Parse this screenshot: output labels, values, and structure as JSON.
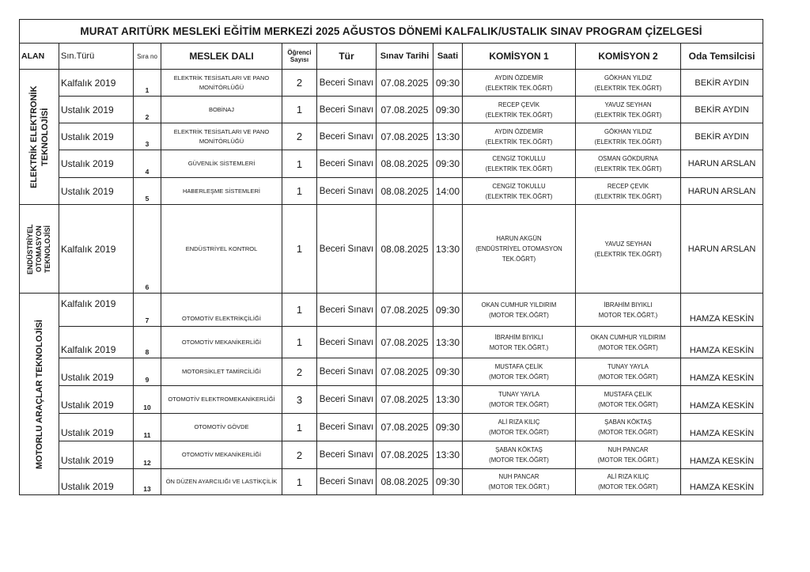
{
  "title": "MURAT ARITÜRK MESLEKİ EĞİTİM MERKEZİ 2025 AĞUSTOS DÖNEMİ KALFALIK/USTALIK SINAV PROGRAM ÇİZELGESİ",
  "headers": {
    "alan": "ALAN",
    "sin_turu": "Sın.Türü",
    "sira_no": "Sıra no",
    "meslek_dali": "MESLEK DALI",
    "ogrenci_sayisi": "Öğrenci Sayısı",
    "tur": "Tür",
    "sinav_tarihi": "Sınav Tarihi",
    "saati": "Saati",
    "komisyon1": "KOMİSYON 1",
    "komisyon2": "KOMİSYON 2",
    "oda": "Oda Temsilcisi"
  },
  "groups": [
    {
      "alan": "ELEKTRİK ELEKTRONİK TEKNOLOJİSİ",
      "rows": [
        {
          "sin": "Kalfalık 2019",
          "sira": "1",
          "meslek": "ELEKTRİK TESİSATLARI VE PANO MONİTÖRLÜĞÜ",
          "ogr": "2",
          "tur": "Beceri Sınavı",
          "tarih": "07.08.2025",
          "saat": "09:30",
          "k1a": "AYDIN ÖZDEMİR",
          "k1b": "(ELEKTRİK TEK.ÖĞRT)",
          "k2a": "GÖKHAN YILDIZ",
          "k2b": "(ELEKTRİK TEK.ÖĞRT)",
          "oda": "BEKİR AYDIN"
        },
        {
          "sin": "Ustalık 2019",
          "sira": "2",
          "meslek": "BOBİNAJ",
          "ogr": "1",
          "tur": "Beceri Sınavı",
          "tarih": "07.08.2025",
          "saat": "09:30",
          "k1a": "RECEP ÇEVİK",
          "k1b": "(ELEKTRİK TEK.ÖĞRT)",
          "k2a": "YAVUZ SEYHAN",
          "k2b": "(ELEKTRİK TEK.ÖĞRT)",
          "oda": "BEKİR AYDIN"
        },
        {
          "sin": "Ustalık 2019",
          "sira": "3",
          "meslek": "ELEKTRİK TESİSATLARI VE PANO MONİTÖRLÜĞÜ",
          "ogr": "2",
          "tur": "Beceri Sınavı",
          "tarih": "07.08.2025",
          "saat": "13:30",
          "k1a": "AYDIN ÖZDEMİR",
          "k1b": "(ELEKTRİK TEK.ÖĞRT)",
          "k2a": "GÖKHAN YILDIZ",
          "k2b": "(ELEKTRİK TEK.ÖĞRT)",
          "oda": "BEKİR AYDIN"
        },
        {
          "sin": "Ustalık 2019",
          "sira": "4",
          "meslek": "GÜVENLİK SİSTEMLERİ",
          "ogr": "1",
          "tur": "Beceri Sınavı",
          "tarih": "08.08.2025",
          "saat": "09:30",
          "k1a": "CENGİZ TOKULLU",
          "k1b": "(ELEKTRİK TEK.ÖĞRT)",
          "k2a": "OSMAN GÖKDURNA",
          "k2b": "(ELEKTRİK TEK.ÖĞRT)",
          "oda": "HARUN ARSLAN"
        },
        {
          "sin": "Ustalık 2019",
          "sira": "5",
          "meslek": "HABERLEŞME SİSTEMLERİ",
          "ogr": "1",
          "tur": "Beceri Sınavı",
          "tarih": "08.08.2025",
          "saat": "14:00",
          "k1a": "CENGİZ TOKULLU",
          "k1b": "(ELEKTRİK TEK.ÖĞRT)",
          "k2a": "RECEP ÇEVİK",
          "k2b": "(ELEKTRİK TEK.ÖĞRT)",
          "oda": "HARUN ARSLAN"
        }
      ]
    },
    {
      "alan": "ENDÜSTRİYEL OTOMASYON TEKNOLOJİSİ",
      "rows": [
        {
          "sin": "Kalfalık 2019",
          "sira": "6",
          "meslek": "ENDÜSTRİYEL KONTROL",
          "ogr": "1",
          "tur": "Beceri Sınavı",
          "tarih": "08.08.2025",
          "saat": "13:30",
          "k1a": "HARUN AKGÜN",
          "k1b": "(ENDÜSTRİYEL OTOMASYON TEK.ÖĞRT)",
          "k2a": "YAVUZ SEYHAN",
          "k2b": "(ELEKTRİK TEK.ÖĞRT)",
          "oda": "HARUN ARSLAN"
        }
      ]
    },
    {
      "alan": "MOTORLU ARAÇLAR TEKNOLOJİSİ",
      "rows": [
        {
          "sin": "Kalfalık 2019",
          "sira": "7",
          "meslek": "OTOMOTİV ELEKTRİKÇİLİĞİ",
          "ogr": "1",
          "tur": "Beceri Sınavı",
          "tarih": "07.08.2025",
          "saat": "09:30",
          "k1a": "OKAN CUMHUR YILDIRIM",
          "k1b": "(MOTOR TEK.ÖĞRT)",
          "k2a": "İBRAHİM BIYIKLI",
          "k2b": "MOTOR TEK.ÖĞRT.)",
          "oda": "HAMZA KESKİN"
        },
        {
          "sin": "Kalfalık 2019",
          "sira": "8",
          "meslek": "OTOMOTİV MEKANİKERLİĞİ",
          "ogr": "1",
          "tur": "Beceri Sınavı",
          "tarih": "07.08.2025",
          "saat": "13:30",
          "k1a": "İBRAHİM BIYIKLI",
          "k1b": "MOTOR TEK.ÖĞRT.)",
          "k2a": "OKAN CUMHUR YILDIRIM",
          "k2b": "(MOTOR TEK.ÖĞRT)",
          "oda": "HAMZA KESKİN"
        },
        {
          "sin": "Ustalık 2019",
          "sira": "9",
          "meslek": "MOTORSİKLET TAMİRCİLİĞİ",
          "ogr": "2",
          "tur": "Beceri Sınavı",
          "tarih": "07.08.2025",
          "saat": "09:30",
          "k1a": "MUSTAFA ÇELİK",
          "k1b": "(MOTOR TEK.ÖĞRT)",
          "k2a": "TUNAY YAYLA",
          "k2b": "(MOTOR TEK.ÖĞRT)",
          "oda": "HAMZA KESKİN"
        },
        {
          "sin": "Ustalık 2019",
          "sira": "10",
          "meslek": "OTOMOTİV ELEKTROMEKANİKERLİĞİ",
          "ogr": "3",
          "tur": "Beceri Sınavı",
          "tarih": "07.08.2025",
          "saat": "13:30",
          "k1a": "TUNAY YAYLA",
          "k1b": "(MOTOR TEK.ÖĞRT)",
          "k2a": "MUSTAFA ÇELİK",
          "k2b": "(MOTOR TEK.ÖĞRT)",
          "oda": "HAMZA KESKİN"
        },
        {
          "sin": "Ustalık 2019",
          "sira": "11",
          "meslek": "OTOMOTİV GÖVDE",
          "ogr": "1",
          "tur": "Beceri Sınavı",
          "tarih": "07.08.2025",
          "saat": "09:30",
          "k1a": "ALİ RIZA KILIÇ",
          "k1b": "(MOTOR TEK.ÖĞRT)",
          "k2a": "ŞABAN KÖKTAŞ",
          "k2b": "(MOTOR TEK.ÖĞRT)",
          "oda": "HAMZA KESKİN"
        },
        {
          "sin": "Ustalık 2019",
          "sira": "12",
          "meslek": "OTOMOTİV MEKANİKERLİĞİ",
          "ogr": "2",
          "tur": "Beceri Sınavı",
          "tarih": "07.08.2025",
          "saat": "13:30",
          "k1a": "ŞABAN KÖKTAŞ",
          "k1b": "(MOTOR TEK.ÖĞRT)",
          "k2a": "NUH PANCAR",
          "k2b": "(MOTOR TEK.ÖĞRT.)",
          "oda": "HAMZA KESKİN"
        },
        {
          "sin": "Ustalık 2019",
          "sira": "13",
          "meslek": "ÖN DÜZEN AYARCILIĞI VE LASTİKÇİLİK",
          "ogr": "1",
          "tur": "Beceri Sınavı",
          "tarih": "08.08.2025",
          "saat": "09:30",
          "k1a": "NUH PANCAR",
          "k1b": "(MOTOR TEK.ÖĞRT.)",
          "k2a": "ALİ RIZA KILIÇ",
          "k2b": "(MOTOR TEK.ÖĞRT)",
          "oda": "HAMZA KESKİN"
        }
      ]
    }
  ]
}
